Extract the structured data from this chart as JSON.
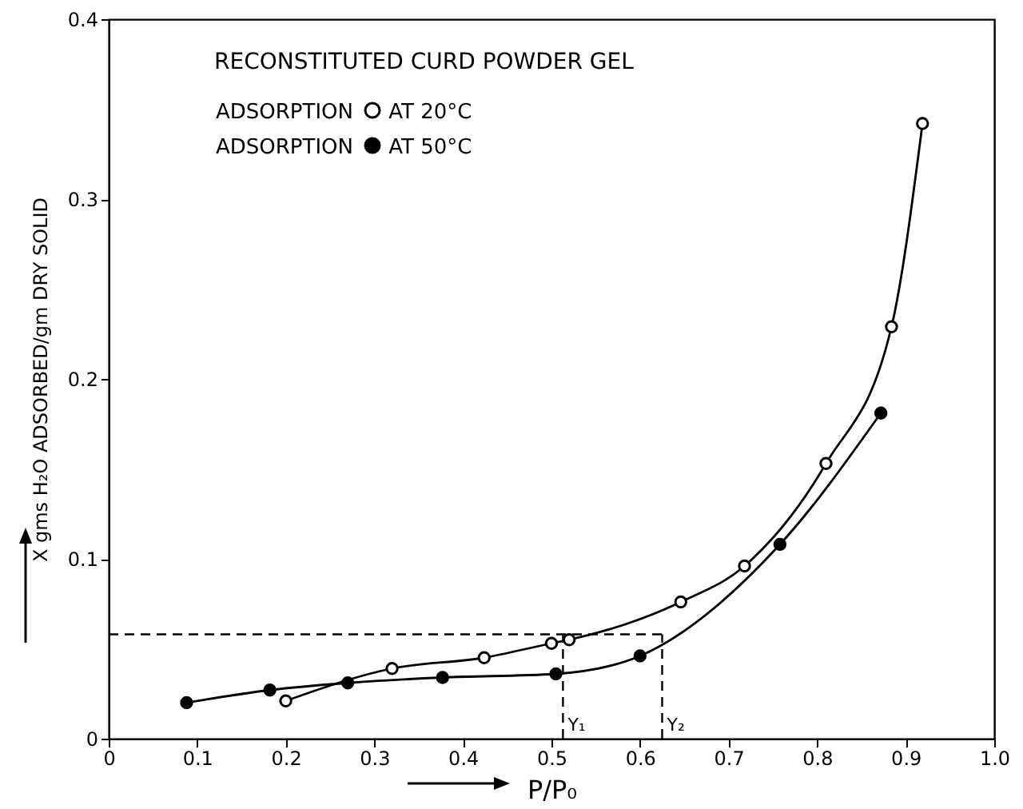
{
  "chart_data": {
    "type": "line",
    "title": "RECONSTITUTED CURD POWDER GEL",
    "legend_title": "ADSORPTION",
    "xlabel": "P/P₀",
    "ylabel": "X gms H₂O ADSORBED/gm DRY SOLID",
    "xlim": [
      0,
      1
    ],
    "ylim": [
      0,
      0.4
    ],
    "xticks": [
      0,
      0.1,
      0.2,
      0.3,
      0.4,
      0.5,
      0.6,
      0.7,
      0.8,
      0.9,
      {
        "value": 1,
        "label": "1.0"
      }
    ],
    "yticks": [
      0,
      0.1,
      0.2,
      0.3,
      0.4
    ],
    "grid": false,
    "legend": "top left",
    "marker": "circle",
    "line_style": "solid",
    "series": [
      {
        "name": "AT 20°C",
        "color": "#000000",
        "x": [
          0.2,
          0.32,
          0.424,
          0.5,
          0.52,
          0.646,
          0.718,
          0.81,
          0.884,
          0.919
        ],
        "values": [
          0.021,
          0.039,
          0.045,
          0.053,
          0.055,
          0.076,
          0.096,
          0.153,
          0.229,
          0.342
        ]
      },
      {
        "name": "AT 50°C",
        "color": "#000000",
        "x": [
          0.088,
          0.182,
          0.27,
          0.377,
          0.505,
          0.6,
          0.758,
          0.872
        ],
        "values": [
          0.02,
          0.027,
          0.031,
          0.034,
          0.036,
          0.046,
          0.108,
          0.181
        ]
      }
    ],
    "ref_lines": [
      {
        "axis": "y",
        "value": 0.058,
        "line_style": "dashed"
      },
      {
        "axis": "x",
        "value": 0.513,
        "label": "Y₁",
        "line_style": "dashed"
      },
      {
        "axis": "x",
        "value": 0.625,
        "label": "Y₂",
        "line_style": "dashed"
      }
    ]
  }
}
